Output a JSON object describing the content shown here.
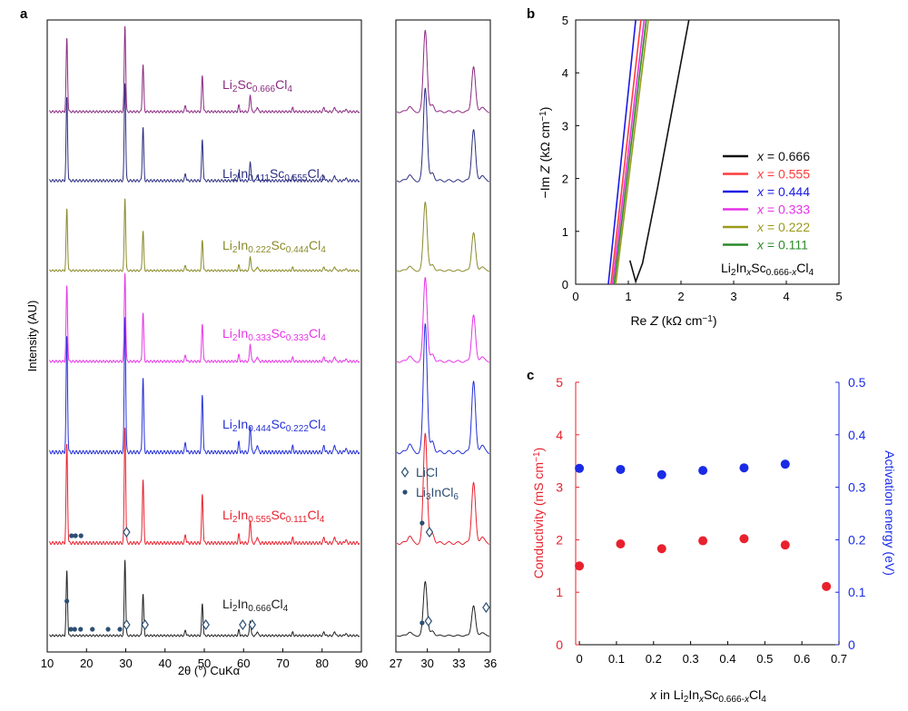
{
  "figure": {
    "panel_labels": [
      "a",
      "b",
      "c"
    ]
  },
  "colors": {
    "axis": "#000000",
    "red": "#e8212d",
    "blue": "#1a2be6",
    "black": "#111111",
    "marker_dark": "#2c4f73",
    "traces": [
      "#222222",
      "#e8212d",
      "#2430d8",
      "#e635e6",
      "#8a8a2a",
      "#2b2e80",
      "#8a2a80"
    ],
    "nyquist": [
      "#111111",
      "#ff3b3b",
      "#1a1ae6",
      "#e632e6",
      "#9a9a1a",
      "#2a8a2a"
    ]
  },
  "chart_data": [
    {
      "panel": "a",
      "type": "line",
      "title": "",
      "xlabel": "2θ (°) CuKα",
      "ylabel": "Intensity (AU)",
      "xlim_left": [
        10,
        90
      ],
      "xticks_left": [
        10,
        20,
        30,
        40,
        50,
        60,
        70,
        80,
        90
      ],
      "xlim_right": [
        27,
        36
      ],
      "xticks_right": [
        27,
        30,
        33,
        36
      ],
      "series": [
        {
          "name": "Li2In0.666Cl4",
          "label_main": "Li",
          "label_parts": [
            [
              "Li",
              ""
            ],
            [
              "2",
              "sub"
            ],
            [
              "In",
              ""
            ],
            [
              "0.666",
              "sub"
            ],
            [
              "Cl",
              ""
            ],
            [
              "4",
              "sub"
            ]
          ]
        },
        {
          "name": "Li2In0.555Sc0.111Cl4",
          "label_parts": [
            [
              "Li",
              ""
            ],
            [
              "2",
              "sub"
            ],
            [
              "In",
              ""
            ],
            [
              "0.555",
              "sub"
            ],
            [
              "Sc",
              ""
            ],
            [
              "0.111",
              "sub"
            ],
            [
              "Cl",
              ""
            ],
            [
              "4",
              "sub"
            ]
          ]
        },
        {
          "name": "Li2In0.444Sc0.222Cl4",
          "label_parts": [
            [
              "Li",
              ""
            ],
            [
              "2",
              "sub"
            ],
            [
              "In",
              ""
            ],
            [
              "0.444",
              "sub"
            ],
            [
              "Sc",
              ""
            ],
            [
              "0.222",
              "sub"
            ],
            [
              "Cl",
              ""
            ],
            [
              "4",
              "sub"
            ]
          ]
        },
        {
          "name": "Li2In0.333Sc0.333Cl4",
          "label_parts": [
            [
              "Li",
              ""
            ],
            [
              "2",
              "sub"
            ],
            [
              "In",
              ""
            ],
            [
              "0.333",
              "sub"
            ],
            [
              "Sc",
              ""
            ],
            [
              "0.333",
              "sub"
            ],
            [
              "Cl",
              ""
            ],
            [
              "4",
              "sub"
            ]
          ]
        },
        {
          "name": "Li2In0.222Sc0.444Cl4",
          "label_parts": [
            [
              "Li",
              ""
            ],
            [
              "2",
              "sub"
            ],
            [
              "In",
              ""
            ],
            [
              "0.222",
              "sub"
            ],
            [
              "Sc",
              ""
            ],
            [
              "0.444",
              "sub"
            ],
            [
              "Cl",
              ""
            ],
            [
              "4",
              "sub"
            ]
          ]
        },
        {
          "name": "Li2In0.111Sc0.555Cl4",
          "label_parts": [
            [
              "Li",
              ""
            ],
            [
              "2",
              "sub"
            ],
            [
              "In",
              ""
            ],
            [
              "0.111",
              "sub"
            ],
            [
              "Sc",
              ""
            ],
            [
              "0.555",
              "sub"
            ],
            [
              "Cl",
              ""
            ],
            [
              "4",
              "sub"
            ]
          ]
        },
        {
          "name": "Li2Sc0.666Cl4",
          "label_parts": [
            [
              "Li",
              ""
            ],
            [
              "2",
              "sub"
            ],
            [
              "Sc",
              ""
            ],
            [
              "0.666",
              "sub"
            ],
            [
              "Cl",
              ""
            ],
            [
              "4",
              "sub"
            ]
          ]
        }
      ],
      "peaks": [
        [
          15.0,
          0.85
        ],
        [
          29.8,
          1.0
        ],
        [
          34.4,
          0.55
        ],
        [
          49.5,
          0.42
        ],
        [
          58.8,
          0.07
        ],
        [
          61.7,
          0.2
        ],
        [
          45.2,
          0.07
        ],
        [
          63.5,
          0.06
        ],
        [
          72.5,
          0.04
        ],
        [
          80.5,
          0.05
        ],
        [
          83.2,
          0.06
        ],
        [
          86.0,
          0.03
        ]
      ],
      "peaks_right": [
        [
          28.3,
          0.07
        ],
        [
          29.8,
          1.0
        ],
        [
          30.5,
          0.08
        ],
        [
          34.4,
          0.55
        ],
        [
          35.2,
          0.06
        ]
      ],
      "legend": [
        {
          "marker": "diamond",
          "label_parts": [
            [
              "LiCl",
              ""
            ]
          ]
        },
        {
          "marker": "dot",
          "label_parts": [
            [
              "Li",
              ""
            ],
            [
              "3",
              "sub"
            ],
            [
              "InCl",
              ""
            ],
            [
              "6",
              "sub"
            ]
          ]
        }
      ],
      "markers_bottom": {
        "diamond": [
          30.2,
          34.9,
          50.4,
          59.8,
          62.2
        ],
        "dot_high": [
          15.0
        ],
        "dot_low": [
          16.0,
          17.0,
          18.5,
          21.5,
          25.5,
          28.5
        ],
        "diamond_right": [
          30.1,
          35.6
        ],
        "dot_right": [
          29.5
        ]
      },
      "markers_second": {
        "dot": [
          16.2,
          17.2,
          18.6
        ],
        "diamond": [
          30.2
        ],
        "dot_right": [
          29.5
        ],
        "diamond_right": [
          30.2
        ]
      }
    },
    {
      "panel": "b",
      "type": "line",
      "title": "",
      "xlabel_parts": [
        [
          "Re ",
          ""
        ],
        [
          "Z",
          "i"
        ],
        [
          " (kΩ cm",
          ""
        ],
        [
          "−1",
          "sup"
        ],
        [
          ")",
          ""
        ]
      ],
      "ylabel_parts": [
        [
          "−Im ",
          ""
        ],
        [
          "Z",
          "i"
        ],
        [
          " (kΩ cm",
          ""
        ],
        [
          "−1",
          "sup"
        ],
        [
          ")",
          ""
        ]
      ],
      "xlim": [
        0,
        5
      ],
      "ylim": [
        0,
        5
      ],
      "xticks": [
        0,
        1,
        2,
        3,
        4,
        5
      ],
      "yticks": [
        0,
        1,
        2,
        3,
        4,
        5
      ],
      "series": [
        {
          "x_value": "0.666",
          "points": [
            [
              1.03,
              0.45
            ],
            [
              1.14,
              0.05
            ],
            [
              1.27,
              0.4
            ],
            [
              1.55,
              1.8
            ],
            [
              1.85,
              3.4
            ],
            [
              2.15,
              5.0
            ]
          ]
        },
        {
          "x_value": "0.555",
          "points": [
            [
              0.67,
              0
            ],
            [
              1.24,
              5.0
            ]
          ]
        },
        {
          "x_value": "0.444",
          "points": [
            [
              0.62,
              0
            ],
            [
              1.14,
              5.0
            ]
          ]
        },
        {
          "x_value": "0.333",
          "points": [
            [
              0.7,
              0
            ],
            [
              1.3,
              5.0
            ]
          ]
        },
        {
          "x_value": "0.222",
          "points": [
            [
              0.76,
              0
            ],
            [
              1.38,
              5.0
            ]
          ]
        },
        {
          "x_value": "0.111",
          "points": [
            [
              0.73,
              0
            ],
            [
              1.34,
              5.0
            ]
          ]
        }
      ],
      "legend_prefix": "x",
      "legend_eq": " = ",
      "annotation_parts": [
        [
          "Li",
          ""
        ],
        [
          "2",
          "sub"
        ],
        [
          "In",
          ""
        ],
        [
          "x",
          "subi"
        ],
        [
          "Sc",
          ""
        ],
        [
          "0.666-",
          "sub"
        ],
        [
          "x",
          "subi"
        ],
        [
          "Cl",
          ""
        ],
        [
          "4",
          "sub"
        ]
      ]
    },
    {
      "panel": "c",
      "type": "scatter",
      "title": "",
      "xlabel_parts": [
        [
          "x",
          "i"
        ],
        [
          " in Li",
          ""
        ],
        [
          "2",
          "sub"
        ],
        [
          "In",
          ""
        ],
        [
          "x",
          "subi"
        ],
        [
          "Sc",
          ""
        ],
        [
          "0.666-",
          "sub"
        ],
        [
          "x",
          "subi"
        ],
        [
          "Cl",
          ""
        ],
        [
          "4",
          "sub"
        ]
      ],
      "ylabel_left_parts": [
        [
          "Conductivity (mS cm",
          ""
        ],
        [
          "−1",
          "sup"
        ],
        [
          ")",
          ""
        ]
      ],
      "ylabel_right": "Activation energy (eV)",
      "xlim": [
        -0.01,
        0.7
      ],
      "ylim_left": [
        0,
        5
      ],
      "ylim_right": [
        0,
        0.5
      ],
      "xticks": [
        "0",
        "0.1",
        "0.2",
        "0.3",
        "0.4",
        "0.5",
        "0.6",
        "0.7"
      ],
      "yticks_left": [
        "0",
        "1",
        "2",
        "3",
        "4",
        "5"
      ],
      "yticks_right": [
        "0",
        "0.1",
        "0.2",
        "0.3",
        "0.4",
        "0.5"
      ],
      "series": [
        {
          "name": "Conductivity",
          "x": [
            0,
            0.111,
            0.222,
            0.333,
            0.444,
            0.555,
            0.666
          ],
          "values": [
            1.5,
            1.92,
            1.83,
            1.98,
            2.02,
            1.9,
            1.11
          ]
        },
        {
          "name": "Activation energy",
          "x": [
            0,
            0.111,
            0.222,
            0.333,
            0.444,
            0.555
          ],
          "values": [
            0.336,
            0.334,
            0.324,
            0.332,
            0.337,
            0.344
          ]
        }
      ]
    }
  ]
}
